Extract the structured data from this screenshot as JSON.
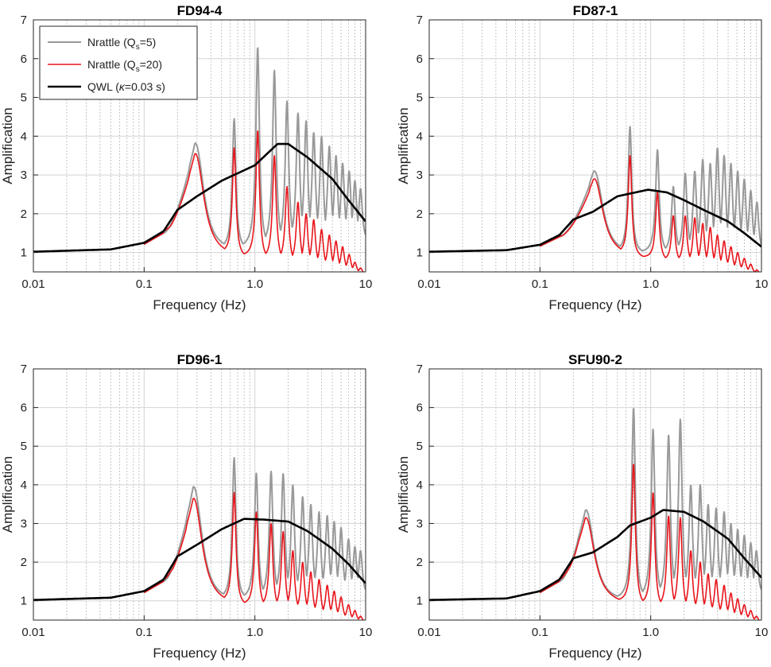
{
  "chart_data": [
    {
      "type": "line",
      "title": "FD94-4",
      "xlabel": "Frequency (Hz)",
      "ylabel": "Amplification",
      "xscale": "log",
      "xlim": [
        0.01,
        10
      ],
      "ylim": [
        0.5,
        7
      ],
      "x_tick_labels": [
        "0.01",
        "0.1",
        "1.0",
        "10"
      ],
      "y_tick_labels": [
        "1",
        "2",
        "3",
        "4",
        "5",
        "6",
        "7"
      ],
      "grid": true,
      "legend": {
        "location": "top-left",
        "entries": [
          {
            "series": "Nrattle (Qs=5)",
            "text": "Nrattle (Q",
            "sub": "s",
            "tail": "=5)",
            "color": "#999999"
          },
          {
            "series": "Nrattle (Qs=20)",
            "text": "Nrattle (Q",
            "sub": "s",
            "tail": "=20)",
            "color": "#e8151b"
          },
          {
            "series": "QWL (κ=0.03 s)",
            "text": "QWL (",
            "kappa": "κ",
            "tail": "=0.03 s)",
            "color": "#000000"
          }
        ]
      },
      "series": [
        {
          "name": "Nrattle (Qs=5)",
          "color": "#999999",
          "peaks": [
            [
              0.29,
              3.82
            ],
            [
              0.65,
              4.45
            ],
            [
              1.06,
              6.3
            ],
            [
              1.5,
              5.7
            ],
            [
              1.95,
              4.9
            ],
            [
              2.45,
              4.6
            ],
            [
              2.9,
              4.4
            ],
            [
              3.4,
              4.1
            ],
            [
              4.0,
              4.0
            ],
            [
              4.7,
              3.75
            ],
            [
              5.4,
              3.5
            ],
            [
              6.2,
              3.3
            ],
            [
              7.1,
              3.1
            ],
            [
              8.0,
              2.85
            ],
            [
              9.0,
              2.65
            ]
          ],
          "trough_factor": 0.5,
          "end_value": 1.8
        },
        {
          "name": "Nrattle (Qs=20)",
          "color": "#e8151b",
          "peaks": [
            [
              0.29,
              3.55
            ],
            [
              0.65,
              3.7
            ],
            [
              1.06,
              4.15
            ],
            [
              1.5,
              3.5
            ],
            [
              1.95,
              2.7
            ],
            [
              2.45,
              2.3
            ],
            [
              2.9,
              2.0
            ],
            [
              3.4,
              1.85
            ],
            [
              4.0,
              1.6
            ],
            [
              4.7,
              1.45
            ],
            [
              5.4,
              1.3
            ],
            [
              6.2,
              1.15
            ],
            [
              7.1,
              0.95
            ],
            [
              8.0,
              0.75
            ],
            [
              9.0,
              0.6
            ]
          ],
          "trough_factor": 0.75,
          "end_value": 0.5
        },
        {
          "name": "QWL (κ=0.03 s)",
          "color": "#000000",
          "points": [
            [
              0.01,
              1.02
            ],
            [
              0.05,
              1.08
            ],
            [
              0.1,
              1.25
            ],
            [
              0.15,
              1.55
            ],
            [
              0.2,
              2.1
            ],
            [
              0.3,
              2.45
            ],
            [
              0.5,
              2.85
            ],
            [
              1.0,
              3.25
            ],
            [
              1.6,
              3.8
            ],
            [
              2.0,
              3.8
            ],
            [
              3.0,
              3.45
            ],
            [
              5.0,
              2.9
            ],
            [
              7.0,
              2.35
            ],
            [
              10.0,
              1.8
            ]
          ]
        }
      ]
    },
    {
      "type": "line",
      "title": "FD87-1",
      "xlabel": "Frequency (Hz)",
      "ylabel": "Amplification",
      "xscale": "log",
      "xlim": [
        0.01,
        10
      ],
      "ylim": [
        0.5,
        7
      ],
      "x_tick_labels": [
        "0.01",
        "0.1",
        "1.0",
        "10"
      ],
      "y_tick_labels": [
        "1",
        "2",
        "3",
        "4",
        "5",
        "6",
        "7"
      ],
      "grid": true,
      "series": [
        {
          "name": "Nrattle (Qs=5)",
          "color": "#999999",
          "peaks": [
            [
              0.31,
              3.1
            ],
            [
              0.65,
              4.25
            ],
            [
              1.15,
              3.65
            ],
            [
              1.6,
              2.7
            ],
            [
              2.05,
              3.05
            ],
            [
              2.5,
              3.1
            ],
            [
              2.95,
              3.4
            ],
            [
              3.45,
              3.3
            ],
            [
              4.0,
              3.7
            ],
            [
              4.6,
              3.5
            ],
            [
              5.3,
              3.3
            ],
            [
              6.1,
              3.1
            ],
            [
              7.0,
              2.9
            ],
            [
              8.0,
              2.6
            ],
            [
              9.1,
              2.3
            ]
          ],
          "trough_factor": 0.55,
          "end_value": 1.3
        },
        {
          "name": "Nrattle (Qs=20)",
          "color": "#e8151b",
          "peaks": [
            [
              0.31,
              2.9
            ],
            [
              0.65,
              3.5
            ],
            [
              1.15,
              2.55
            ],
            [
              1.6,
              1.95
            ],
            [
              2.05,
              1.95
            ],
            [
              2.5,
              1.9
            ],
            [
              2.95,
              1.75
            ],
            [
              3.45,
              1.65
            ],
            [
              4.0,
              1.45
            ],
            [
              4.6,
              1.3
            ],
            [
              5.3,
              1.15
            ],
            [
              6.1,
              1.0
            ],
            [
              7.0,
              0.85
            ],
            [
              8.0,
              0.7
            ],
            [
              9.1,
              0.55
            ]
          ],
          "trough_factor": 0.75,
          "end_value": 0.5
        },
        {
          "name": "QWL (κ=0.03 s)",
          "color": "#000000",
          "points": [
            [
              0.01,
              1.02
            ],
            [
              0.05,
              1.06
            ],
            [
              0.1,
              1.2
            ],
            [
              0.15,
              1.45
            ],
            [
              0.2,
              1.85
            ],
            [
              0.3,
              2.05
            ],
            [
              0.5,
              2.45
            ],
            [
              0.95,
              2.62
            ],
            [
              1.4,
              2.55
            ],
            [
              2.0,
              2.35
            ],
            [
              3.0,
              2.1
            ],
            [
              5.0,
              1.8
            ],
            [
              7.0,
              1.5
            ],
            [
              10.0,
              1.15
            ]
          ]
        }
      ]
    },
    {
      "type": "line",
      "title": "FD96-1",
      "xlabel": "Frequency (Hz)",
      "ylabel": "Amplification",
      "xscale": "log",
      "xlim": [
        0.01,
        10
      ],
      "ylim": [
        0.5,
        7
      ],
      "x_tick_labels": [
        "0.01",
        "0.1",
        "1.0",
        "10"
      ],
      "y_tick_labels": [
        "1",
        "2",
        "3",
        "4",
        "5",
        "6",
        "7"
      ],
      "grid": true,
      "series": [
        {
          "name": "Nrattle (Qs=5)",
          "color": "#999999",
          "peaks": [
            [
              0.28,
              3.95
            ],
            [
              0.65,
              4.7
            ],
            [
              1.03,
              4.3
            ],
            [
              1.4,
              4.35
            ],
            [
              1.8,
              4.3
            ],
            [
              2.2,
              4.0
            ],
            [
              2.7,
              3.7
            ],
            [
              3.2,
              3.5
            ],
            [
              3.8,
              3.3
            ],
            [
              4.5,
              3.2
            ],
            [
              5.2,
              3.05
            ],
            [
              6.0,
              2.9
            ],
            [
              7.0,
              2.6
            ],
            [
              8.0,
              2.4
            ],
            [
              9.0,
              2.3
            ]
          ],
          "trough_factor": 0.5,
          "end_value": 1.6
        },
        {
          "name": "Nrattle (Qs=20)",
          "color": "#e8151b",
          "peaks": [
            [
              0.28,
              3.65
            ],
            [
              0.65,
              3.8
            ],
            [
              1.03,
              3.3
            ],
            [
              1.4,
              3.0
            ],
            [
              1.8,
              2.8
            ],
            [
              2.2,
              2.3
            ],
            [
              2.7,
              2.0
            ],
            [
              3.2,
              1.75
            ],
            [
              3.8,
              1.55
            ],
            [
              4.5,
              1.4
            ],
            [
              5.2,
              1.25
            ],
            [
              6.0,
              1.1
            ],
            [
              7.0,
              0.9
            ],
            [
              8.0,
              0.75
            ],
            [
              9.0,
              0.6
            ]
          ],
          "trough_factor": 0.75,
          "end_value": 0.5
        },
        {
          "name": "QWL (κ=0.03 s)",
          "color": "#000000",
          "points": [
            [
              0.01,
              1.02
            ],
            [
              0.05,
              1.08
            ],
            [
              0.1,
              1.25
            ],
            [
              0.15,
              1.55
            ],
            [
              0.2,
              2.15
            ],
            [
              0.3,
              2.45
            ],
            [
              0.5,
              2.85
            ],
            [
              0.8,
              3.12
            ],
            [
              1.2,
              3.1
            ],
            [
              2.0,
              3.05
            ],
            [
              3.0,
              2.8
            ],
            [
              5.0,
              2.35
            ],
            [
              7.0,
              1.95
            ],
            [
              10.0,
              1.45
            ]
          ]
        }
      ]
    },
    {
      "type": "line",
      "title": "SFU90-2",
      "xlabel": "Frequency (Hz)",
      "ylabel": "Amplification",
      "xscale": "log",
      "xlim": [
        0.01,
        10
      ],
      "ylim": [
        0.5,
        7
      ],
      "x_tick_labels": [
        "0.01",
        "0.1",
        "1.0",
        "10"
      ],
      "y_tick_labels": [
        "1",
        "2",
        "3",
        "4",
        "5",
        "6",
        "7"
      ],
      "grid": true,
      "series": [
        {
          "name": "Nrattle (Qs=5)",
          "color": "#999999",
          "peaks": [
            [
              0.26,
              3.35
            ],
            [
              0.7,
              6.0
            ],
            [
              1.05,
              5.45
            ],
            [
              1.45,
              5.3
            ],
            [
              1.85,
              5.7
            ],
            [
              2.3,
              4.0
            ],
            [
              2.8,
              4.0
            ],
            [
              3.3,
              3.5
            ],
            [
              3.9,
              3.4
            ],
            [
              4.6,
              3.3
            ],
            [
              5.3,
              3.0
            ],
            [
              6.1,
              2.85
            ],
            [
              7.0,
              2.7
            ],
            [
              8.0,
              2.5
            ],
            [
              9.0,
              2.3
            ]
          ],
          "trough_factor": 0.5,
          "end_value": 1.6
        },
        {
          "name": "Nrattle (Qs=20)",
          "color": "#e8151b",
          "peaks": [
            [
              0.26,
              3.15
            ],
            [
              0.7,
              4.55
            ],
            [
              1.05,
              3.8
            ],
            [
              1.45,
              3.2
            ],
            [
              1.85,
              3.15
            ],
            [
              2.3,
              2.3
            ],
            [
              2.8,
              2.0
            ],
            [
              3.3,
              1.7
            ],
            [
              3.9,
              1.55
            ],
            [
              4.6,
              1.4
            ],
            [
              5.3,
              1.2
            ],
            [
              6.1,
              1.05
            ],
            [
              7.0,
              0.9
            ],
            [
              8.0,
              0.75
            ],
            [
              9.0,
              0.6
            ]
          ],
          "trough_factor": 0.75,
          "end_value": 0.5
        },
        {
          "name": "QWL (κ=0.03 s)",
          "color": "#000000",
          "points": [
            [
              0.01,
              1.02
            ],
            [
              0.05,
              1.06
            ],
            [
              0.1,
              1.25
            ],
            [
              0.15,
              1.55
            ],
            [
              0.2,
              2.1
            ],
            [
              0.3,
              2.25
            ],
            [
              0.5,
              2.65
            ],
            [
              0.65,
              2.95
            ],
            [
              1.0,
              3.15
            ],
            [
              1.3,
              3.35
            ],
            [
              2.0,
              3.3
            ],
            [
              3.0,
              3.05
            ],
            [
              5.0,
              2.6
            ],
            [
              7.0,
              2.1
            ],
            [
              10.0,
              1.6
            ]
          ]
        }
      ]
    }
  ]
}
